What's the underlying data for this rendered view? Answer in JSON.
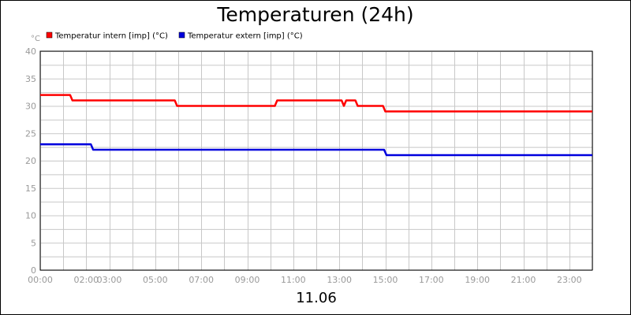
{
  "chart_data": {
    "type": "line",
    "title": "Temperaturen (24h)",
    "ylabel": "°C",
    "xlabel": "11.06",
    "ylim": [
      0,
      40
    ],
    "y_ticks": [
      0,
      5,
      10,
      15,
      20,
      25,
      30,
      35,
      40
    ],
    "xlim": [
      0,
      24
    ],
    "x_tick_hours": [
      0,
      2,
      3,
      5,
      7,
      9,
      11,
      13,
      15,
      17,
      19,
      21,
      23
    ],
    "x_tick_labels": [
      "00:00",
      "02:00",
      "03:00",
      "05:00",
      "07:00",
      "09:00",
      "11:00",
      "13:00",
      "15:00",
      "17:00",
      "19:00",
      "21:00",
      "23:00"
    ],
    "grid": true,
    "legend_position": "top-left",
    "series": [
      {
        "name": "Temperatur intern [imp] (°C)",
        "color": "#ff0000",
        "x": [
          0,
          1.3,
          1.4,
          5.85,
          5.95,
          10.2,
          10.3,
          13.1,
          13.2,
          13.3,
          13.7,
          13.8,
          14.9,
          15.0,
          24
        ],
        "y": [
          32,
          32,
          31,
          31,
          30,
          30,
          31,
          31,
          30,
          31,
          31,
          30,
          30,
          29,
          29
        ]
      },
      {
        "name": "Temperatur extern [imp] (°C)",
        "color": "#0000dd",
        "x": [
          0,
          2.2,
          2.3,
          14.95,
          15.05,
          24
        ],
        "y": [
          23,
          23,
          22,
          22,
          21,
          21
        ]
      }
    ]
  }
}
